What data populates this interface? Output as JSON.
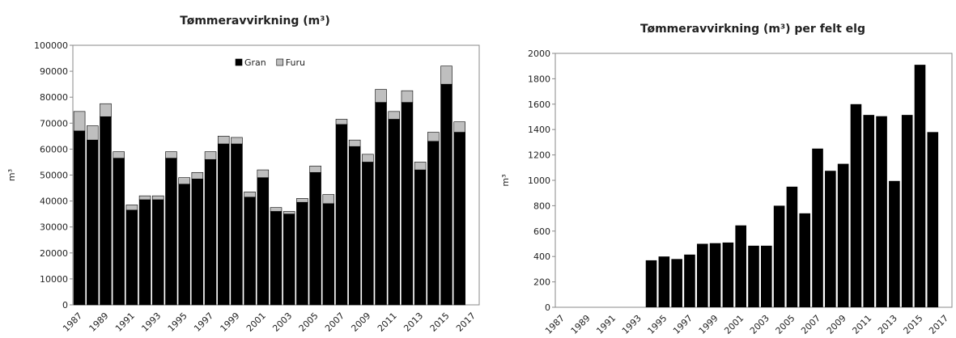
{
  "chart_data": [
    {
      "type": "bar",
      "stacked": true,
      "title": "Tømmeravvirkning (m³)",
      "y_label": "m³",
      "categories": [
        "1987",
        null,
        "1989",
        null,
        "1991",
        null,
        "1993",
        null,
        "1995",
        null,
        "1997",
        null,
        "1999",
        null,
        "2001",
        null,
        "2003",
        null,
        "2005",
        null,
        "2007",
        null,
        "2009",
        null,
        "2011",
        null,
        "2013",
        null,
        "2015",
        null,
        "2017"
      ],
      "series": [
        {
          "name": "Gran",
          "color": "#000000",
          "values": [
            67000,
            63500,
            72500,
            56500,
            36500,
            40500,
            40500,
            56500,
            46500,
            48500,
            56000,
            62000,
            62000,
            41500,
            49000,
            36000,
            35000,
            39500,
            51000,
            39000,
            69500,
            61000,
            55000,
            78000,
            71500,
            78000,
            52000,
            63000,
            85000,
            66500,
            null
          ]
        },
        {
          "name": "Furu",
          "color": "#bfbfbf",
          "values": [
            7500,
            5500,
            5000,
            2500,
            2000,
            1500,
            1500,
            2500,
            2500,
            2500,
            3000,
            3000,
            2500,
            2000,
            3000,
            1500,
            1000,
            1500,
            2500,
            3500,
            2000,
            2500,
            3000,
            5000,
            3000,
            4500,
            3000,
            3500,
            7000,
            4000,
            null
          ]
        }
      ],
      "ylim": [
        0,
        100000
      ],
      "yticks": [
        0,
        10000,
        20000,
        30000,
        40000,
        50000,
        60000,
        70000,
        80000,
        90000,
        100000
      ],
      "legend": "upper center"
    },
    {
      "type": "bar",
      "title": "Tømmeravvirkning (m³) per felt elg",
      "y_label": "m³",
      "categories": [
        "1987",
        null,
        "1989",
        null,
        "1991",
        null,
        "1993",
        null,
        "1995",
        null,
        "1997",
        null,
        "1999",
        null,
        "2001",
        null,
        "2003",
        null,
        "2005",
        null,
        "2007",
        null,
        "2009",
        null,
        "2011",
        null,
        "2013",
        null,
        "2015",
        null,
        "2017"
      ],
      "values": [
        null,
        null,
        null,
        null,
        null,
        null,
        null,
        370,
        400,
        380,
        415,
        500,
        505,
        510,
        645,
        485,
        485,
        800,
        950,
        740,
        1250,
        1075,
        1130,
        1600,
        1515,
        1505,
        995,
        1515,
        1910,
        1380,
        null
      ],
      "color": "#000000",
      "ylim": [
        0,
        2000
      ],
      "yticks": [
        0,
        200,
        400,
        600,
        800,
        1000,
        1200,
        1400,
        1600,
        1800,
        2000
      ]
    }
  ]
}
